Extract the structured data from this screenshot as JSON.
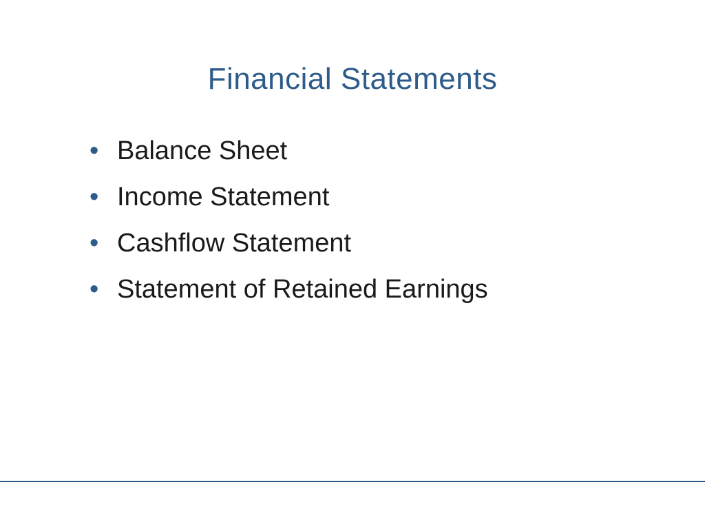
{
  "slide": {
    "title": "Financial Statements",
    "title_color": "#2e5c8a",
    "title_fontsize": 44,
    "background_color": "#ffffff",
    "bullets": [
      "Balance Sheet",
      "Income Statement",
      "Cashflow Statement",
      "Statement of Retained Earnings"
    ],
    "bullet_color": "#2e5c8a",
    "bullet_text_color": "#1a1a1a",
    "bullet_fontsize": 38,
    "divider_color": "#2e5c8a"
  }
}
